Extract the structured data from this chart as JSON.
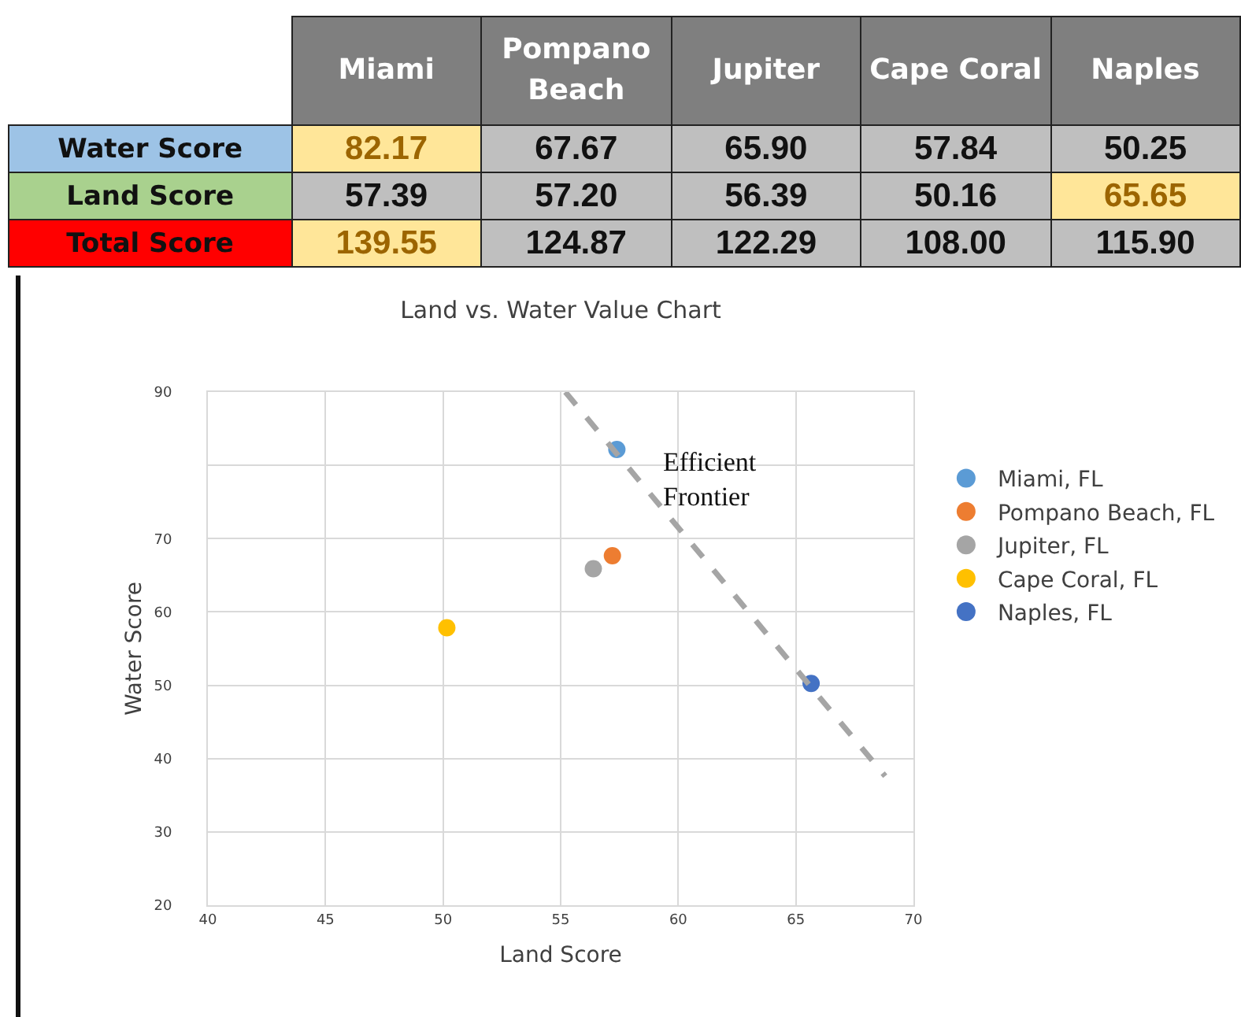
{
  "chart_data": [
    {
      "type": "other",
      "categories": [
        "Miami",
        "Pompano Beach",
        "Jupiter",
        "Cape Coral",
        "Naples"
      ],
      "series": [
        {
          "name": "Water Score",
          "colors": [
            "#ffe699",
            "#bfbfbf",
            "#bfbfbf",
            "#bfbfbf",
            "#bfbfbf"
          ],
          "values": [
            82.17,
            67.67,
            65.9,
            57.84,
            50.25
          ],
          "value_labels": [
            "82.17",
            "67.67",
            "65.90",
            "57.84",
            "50.25"
          ]
        },
        {
          "name": "Land Score",
          "colors": [
            "#bfbfbf",
            "#bfbfbf",
            "#bfbfbf",
            "#bfbfbf",
            "#ffe699"
          ],
          "values": [
            57.39,
            57.2,
            56.39,
            50.16,
            65.65
          ],
          "value_labels": [
            "57.39",
            "57.20",
            "56.39",
            "50.16",
            "65.65"
          ]
        },
        {
          "name": "Total Score",
          "colors": [
            "#ffe699",
            "#bfbfbf",
            "#bfbfbf",
            "#bfbfbf",
            "#bfbfbf"
          ],
          "values": [
            139.55,
            124.87,
            122.29,
            108.0,
            115.9
          ],
          "value_labels": [
            "139.55",
            "124.87",
            "122.29",
            "108.00",
            "115.90"
          ]
        }
      ]
    },
    {
      "type": "scatter",
      "title": "Land vs. Water Value Chart",
      "xlabel": "Land Score",
      "ylabel": "Water Score",
      "xlim": [
        40,
        70
      ],
      "xticks": [
        40,
        45,
        50,
        55,
        60,
        65,
        70
      ],
      "ylim": [
        20,
        90
      ],
      "yticks": [
        20,
        30,
        40,
        50,
        60,
        70,
        {
          "value": 80,
          "label": null
        },
        90
      ],
      "grid": true,
      "legend": "right",
      "series": [
        {
          "name": "Miami, FL",
          "color": "#5b9bd5",
          "marker": "circle",
          "x": [
            57.39
          ],
          "values": [
            82.17
          ]
        },
        {
          "name": "Pompano Beach, FL",
          "color": "#ed7d31",
          "marker": "circle",
          "x": [
            57.2
          ],
          "values": [
            67.67
          ]
        },
        {
          "name": "Jupiter, FL",
          "color": "#a5a5a5",
          "marker": "circle",
          "x": [
            56.39
          ],
          "values": [
            65.9
          ]
        },
        {
          "name": "Cape Coral, FL",
          "color": "#ffc000",
          "marker": "circle",
          "x": [
            50.16
          ],
          "values": [
            57.84
          ]
        },
        {
          "name": "Naples, FL",
          "color": "#4472c4",
          "marker": "circle",
          "x": [
            65.65
          ],
          "values": [
            50.25
          ]
        },
        {
          "type": "line",
          "color": "#a5a5a5",
          "marker": "none",
          "line_style": "dashed",
          "x": [
            55.2,
            68.8
          ],
          "values": [
            90,
            37.6
          ]
        }
      ],
      "annotations": [
        "Efficient Frontier"
      ]
    }
  ]
}
